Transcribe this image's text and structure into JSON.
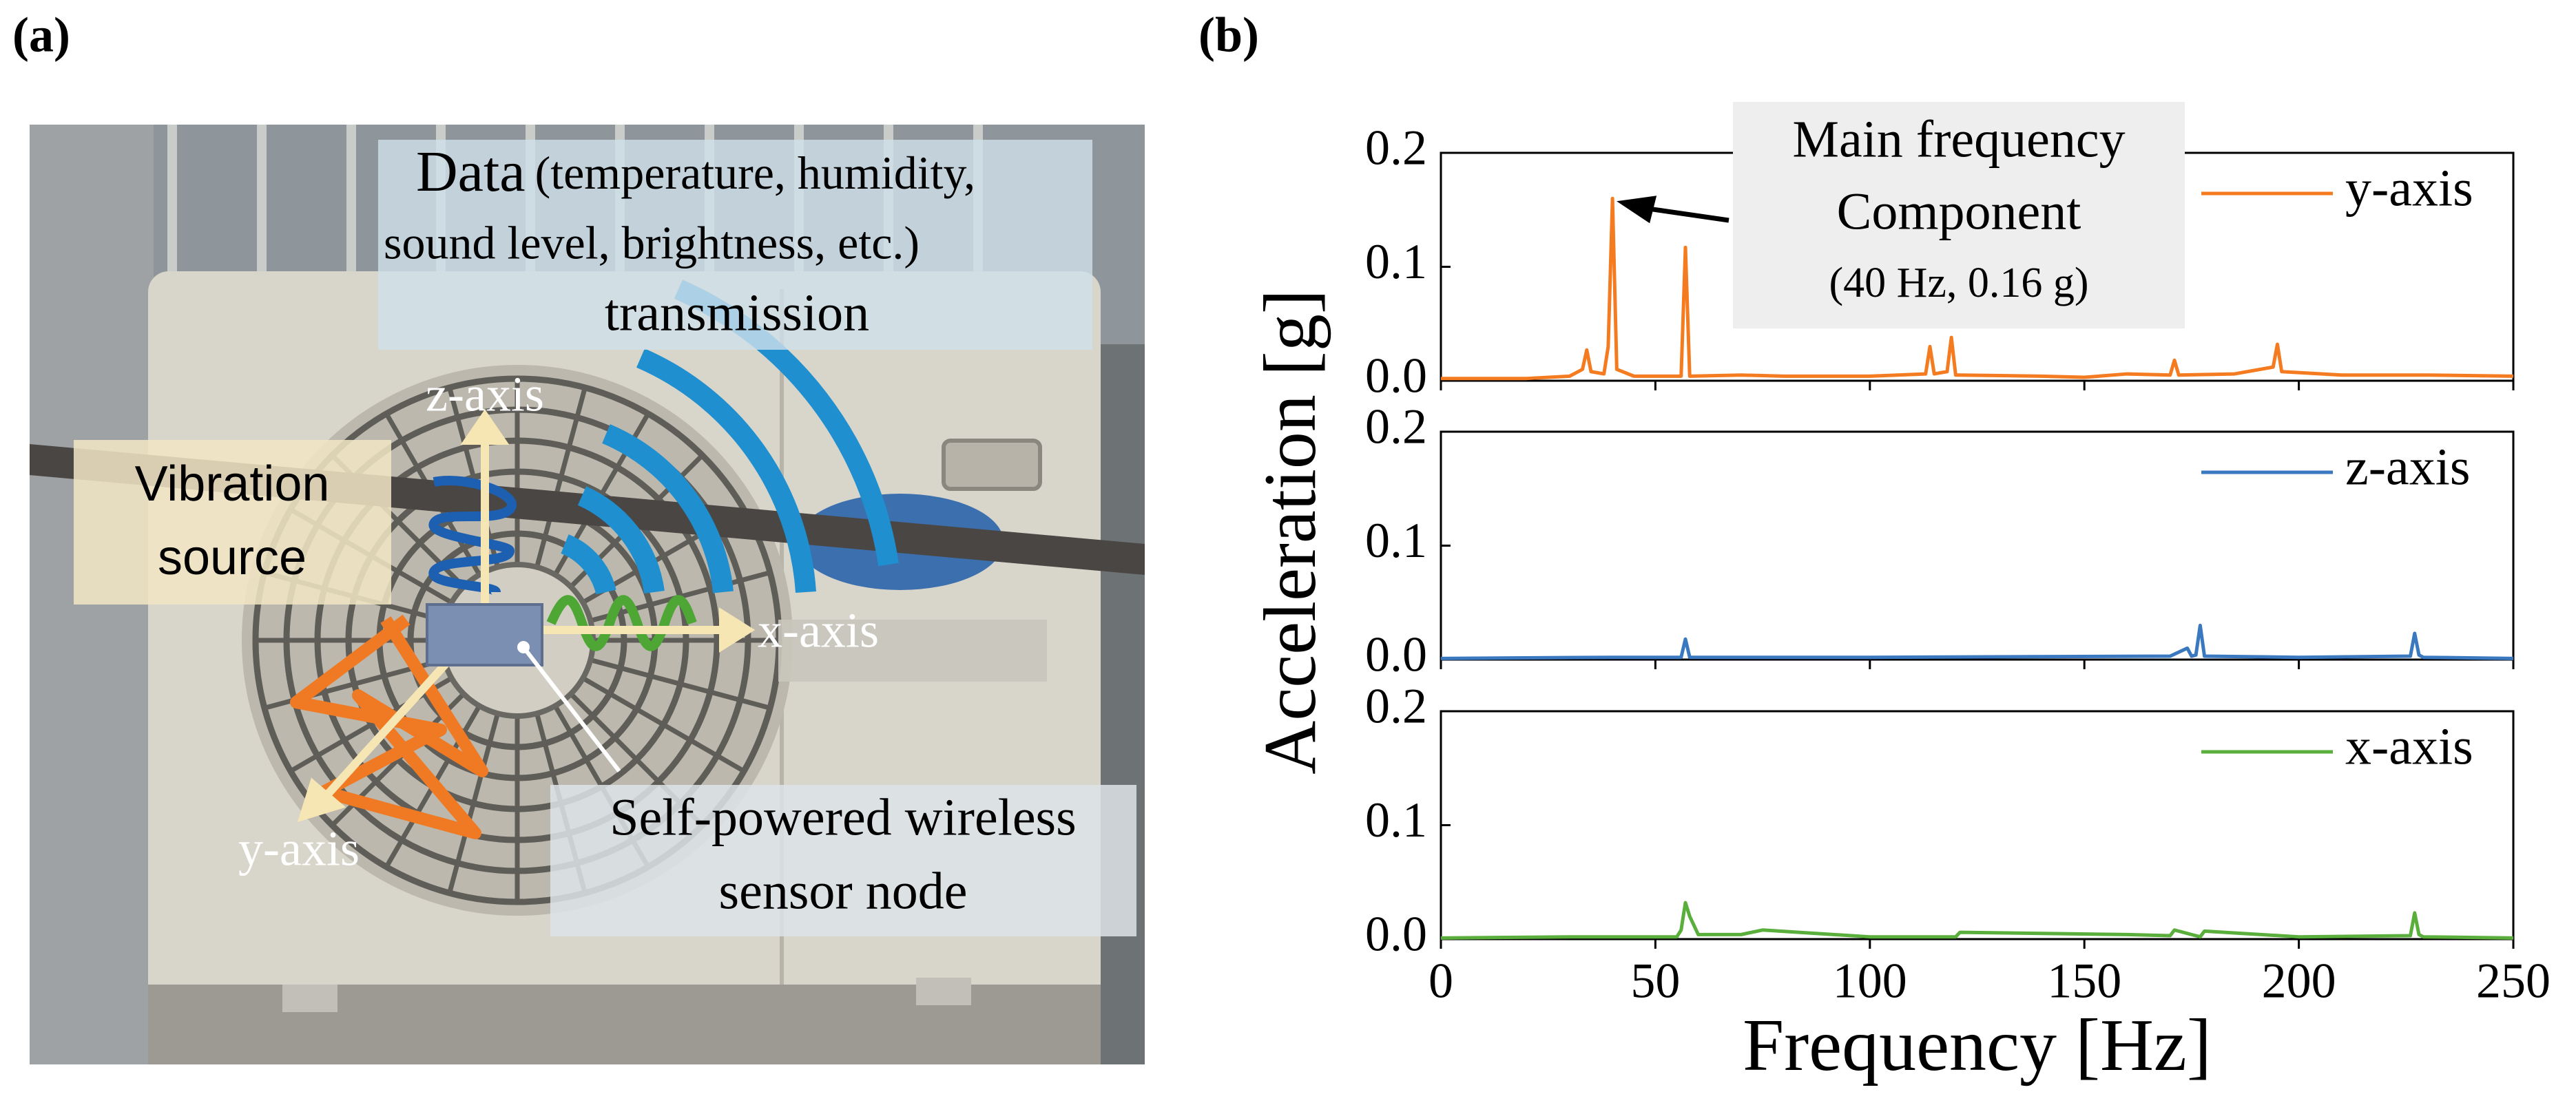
{
  "panel_a": {
    "label": "(a)",
    "data_text": {
      "lead": "Data",
      "lines": [
        "(temperature, humidity,",
        "sound level, brightness, etc.)",
        "transmission"
      ]
    },
    "vibration_source": [
      "Vibration",
      "source"
    ],
    "sensor_node": [
      "Self-powered wireless",
      "sensor node"
    ],
    "axes": {
      "z": "z-axis",
      "x": "x-axis",
      "y": "y-axis"
    }
  },
  "panel_b": {
    "label": "(b)"
  },
  "chart_data": [
    {
      "type": "line",
      "xlim": [
        0,
        250
      ],
      "xticks": [
        0,
        50,
        100,
        150,
        200,
        250
      ],
      "xticklabels": false,
      "ylim": [
        0,
        0.2
      ],
      "yticks": [
        {
          "value": 0,
          "label": "0.0"
        },
        0.1,
        0.2
      ],
      "annotation": [
        "Main frequency",
        "Component",
        "(40 Hz, 0.16 g)"
      ],
      "x": [
        0,
        10,
        20,
        30,
        33,
        34,
        35,
        38,
        39,
        40,
        41,
        45,
        56,
        57,
        58,
        70,
        80,
        100,
        113,
        114,
        115,
        118,
        119,
        120,
        121,
        140,
        150,
        160,
        170,
        171,
        172,
        185,
        194,
        195,
        196,
        210,
        230,
        250
      ],
      "series": [
        {
          "name": "y-axis",
          "color": "#f47b20",
          "values": [
            0.002,
            0.002,
            0.002,
            0.004,
            0.01,
            0.027,
            0.008,
            0.006,
            0.03,
            0.16,
            0.01,
            0.004,
            0.004,
            0.117,
            0.004,
            0.005,
            0.004,
            0.004,
            0.006,
            0.03,
            0.006,
            0.008,
            0.038,
            0.005,
            0.005,
            0.004,
            0.003,
            0.006,
            0.005,
            0.018,
            0.005,
            0.006,
            0.012,
            0.032,
            0.008,
            0.005,
            0.005,
            0.004
          ]
        }
      ]
    },
    {
      "type": "line",
      "xlim": [
        0,
        250
      ],
      "xticks": [
        0,
        50,
        100,
        150,
        200,
        250
      ],
      "xticklabels": false,
      "ylim": [
        0,
        0.2
      ],
      "yticks": [
        {
          "value": 0,
          "label": "0.0"
        },
        0.1,
        0.2
      ],
      "ylabel": "Acceleration [g]",
      "x": [
        0,
        40,
        56,
        57,
        58,
        100,
        170,
        174,
        175,
        176,
        177,
        178,
        200,
        226,
        227,
        228,
        229,
        250
      ],
      "series": [
        {
          "name": "z-axis",
          "color": "#3a78c0",
          "values": [
            0.001,
            0.002,
            0.002,
            0.018,
            0.002,
            0.002,
            0.003,
            0.01,
            0.003,
            0.004,
            0.03,
            0.003,
            0.002,
            0.003,
            0.023,
            0.004,
            0.002,
            0.001
          ]
        }
      ]
    },
    {
      "type": "line",
      "xlim": [
        0,
        250
      ],
      "xticks": [
        0,
        50,
        100,
        150,
        200,
        250
      ],
      "xticklabels": true,
      "ylim": [
        0,
        0.2
      ],
      "yticks": [
        {
          "value": 0,
          "label": "0.0"
        },
        0.1,
        0.2
      ],
      "xlabel": "Frequency [Hz]",
      "x": [
        0,
        30,
        55,
        56,
        57,
        58,
        60,
        70,
        75,
        100,
        120,
        121,
        160,
        170,
        171,
        177,
        178,
        200,
        226,
        227,
        228,
        229,
        250
      ],
      "series": [
        {
          "name": "x-axis",
          "color": "#5aae3c",
          "values": [
            0.001,
            0.002,
            0.002,
            0.008,
            0.032,
            0.02,
            0.004,
            0.004,
            0.008,
            0.002,
            0.002,
            0.006,
            0.004,
            0.003,
            0.008,
            0.002,
            0.007,
            0.002,
            0.003,
            0.023,
            0.004,
            0.002,
            0.001
          ]
        }
      ]
    }
  ]
}
